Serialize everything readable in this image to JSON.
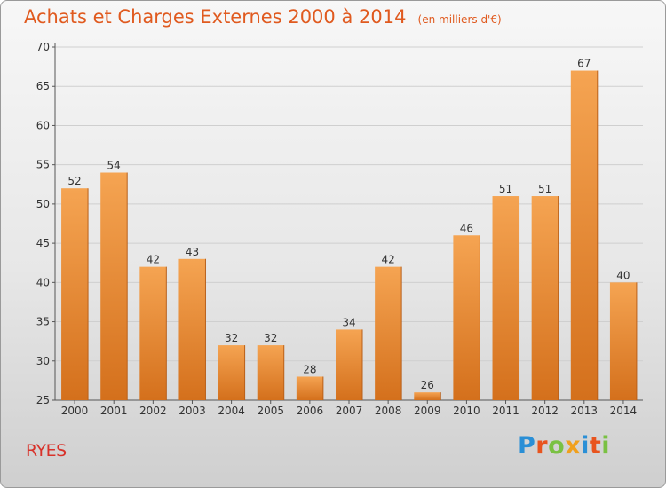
{
  "title": "Achats et Charges Externes 2000 à 2014",
  "unit_note": "(en milliers d'€)",
  "place": "RYES",
  "brand": {
    "text": "Proxiti",
    "letter_colors": [
      "#2a8fd6",
      "#e8541e",
      "#7ac143",
      "#f0a01d",
      "#2a8fd6",
      "#e8541e",
      "#7ac143"
    ]
  },
  "colors": {
    "bar_light": "#f5a452",
    "bar_dark": "#d4701c",
    "title": "#e05a1f",
    "place": "#d8322a",
    "grid": "#cfcfcf"
  },
  "chart_data": {
    "type": "bar",
    "title": "Achats et Charges Externes 2000 à 2014",
    "categories": [
      "2000",
      "2001",
      "2002",
      "2003",
      "2004",
      "2005",
      "2006",
      "2007",
      "2008",
      "2009",
      "2010",
      "2011",
      "2012",
      "2013",
      "2014"
    ],
    "values": [
      52,
      54,
      42,
      43,
      32,
      32,
      28,
      34,
      42,
      26,
      46,
      51,
      51,
      67,
      40
    ],
    "data_labels": [
      "52",
      "54",
      "42",
      "43",
      "32",
      "32",
      "28",
      "34",
      "42",
      "26",
      "46",
      "51",
      "51",
      "67",
      "40"
    ],
    "ylim": [
      25,
      70
    ],
    "yticks": [
      25,
      30,
      35,
      40,
      45,
      50,
      55,
      60,
      65,
      70
    ],
    "ytick_labels": [
      "25",
      "30",
      "35",
      "40",
      "45",
      "50",
      "55",
      "60",
      "65",
      "70"
    ],
    "xlabel": "",
    "ylabel": "",
    "grid": true,
    "legend": "none"
  }
}
